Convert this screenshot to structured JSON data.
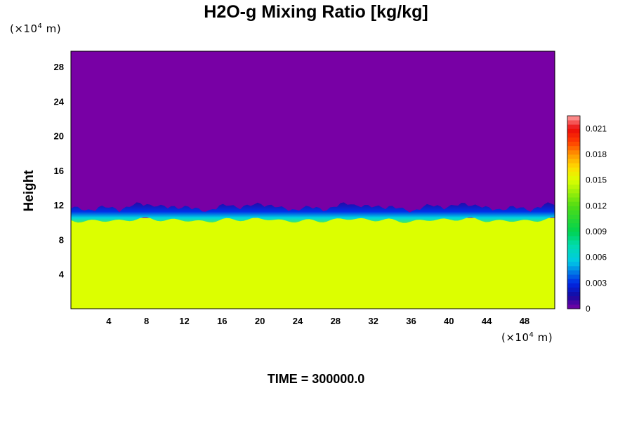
{
  "chart_data": {
    "type": "heatmap",
    "title": "H2O-g Mixing Ratio [kg/kg]",
    "ylabel": "Height",
    "y_unit_prefix": "(×10",
    "y_unit_exp": "4",
    "y_unit_suffix": " m)",
    "x_unit_prefix": "(×10",
    "x_unit_exp": "4",
    "x_unit_suffix": " m)",
    "x_ticks": [
      "4",
      "8",
      "12",
      "16",
      "20",
      "24",
      "28",
      "32",
      "36",
      "40",
      "44",
      "48"
    ],
    "y_ticks": [
      "4",
      "8",
      "12",
      "16",
      "20",
      "24",
      "28"
    ],
    "xlim": [
      0,
      51.2
    ],
    "ylim": [
      0,
      29.8
    ],
    "boundary_height": 10.5,
    "upper_value": 0,
    "lower_value": 0.015,
    "colorbar_ticks": [
      "0",
      "0.003",
      "0.006",
      "0.009",
      "0.012",
      "0.015",
      "0.018",
      "0.021"
    ],
    "colorbar_range": [
      0,
      0.0225
    ],
    "time_label": "TIME = 300000.0"
  }
}
